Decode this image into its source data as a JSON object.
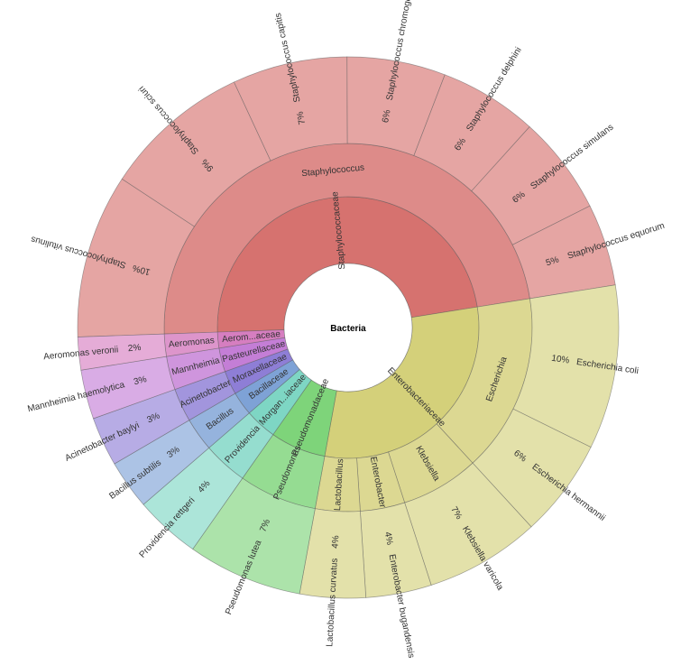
{
  "chart_data": {
    "type": "sunburst",
    "root": "Bacteria",
    "families": [
      {
        "name": "Staphylococcaceae",
        "color": "#d6726f",
        "genera": [
          {
            "name": "Staphylococcus",
            "species": [
              {
                "name": "Staphylococcus vitulinus",
                "pct": 10
              },
              {
                "name": "Staphylococcus sciuri",
                "pct": 9
              },
              {
                "name": "Staphylococcus capitis",
                "pct": 7
              },
              {
                "name": "Staphylococcus chromogenes",
                "pct": 6
              },
              {
                "name": "Staphylococcus delphini",
                "pct": 6
              },
              {
                "name": "Staphylococcus simulans",
                "pct": 6
              },
              {
                "name": "Staphylococcus equorum",
                "pct": 5
              }
            ]
          }
        ]
      },
      {
        "name": "Enterobacteriaceae",
        "color": "#d4d07a",
        "genera": [
          {
            "name": "Escherichia",
            "species": [
              {
                "name": "Escherichia coli",
                "pct": 10
              },
              {
                "name": "Escherichia hermannii",
                "pct": 6
              }
            ]
          },
          {
            "name": "Klebsiella",
            "species": [
              {
                "name": "Klebsiella varicola",
                "pct": 7
              }
            ]
          },
          {
            "name": "Enterobacter",
            "species": [
              {
                "name": "Enterobacter bugandensis",
                "pct": 4
              }
            ]
          },
          {
            "name": "Lactobacillus",
            "species": [
              {
                "name": "Lactobacillus curvatus",
                "pct": 4
              }
            ]
          }
        ]
      },
      {
        "name": "Pseudomonadaceae",
        "color": "#7ed47a",
        "genera": [
          {
            "name": "Pseudomonas",
            "species": [
              {
                "name": "Pseudomonas lutea",
                "pct": 7
              }
            ]
          }
        ]
      },
      {
        "name": "Morgan...iaceae",
        "color": "#7ed6c4",
        "genera": [
          {
            "name": "Providencia",
            "species": [
              {
                "name": "Providencia rettgeri",
                "pct": 4
              }
            ]
          }
        ]
      },
      {
        "name": "Bacillaceae",
        "color": "#7ea2d6",
        "genera": [
          {
            "name": "Bacillus",
            "species": [
              {
                "name": "Bacillus subtilis",
                "pct": 3
              }
            ]
          }
        ]
      },
      {
        "name": "Moraxellaceae",
        "color": "#8e7ed6",
        "genera": [
          {
            "name": "Acinetobacter",
            "species": [
              {
                "name": "Acinetobacter baylyi",
                "pct": 3
              }
            ]
          }
        ]
      },
      {
        "name": "Pasteurellaceae",
        "color": "#c47ed6",
        "genera": [
          {
            "name": "Mannheimia",
            "species": [
              {
                "name": "Mannheimia haemolytica",
                "pct": 3
              }
            ]
          }
        ]
      },
      {
        "name": "Aerom...aceae",
        "color": "#d67ec0",
        "genera": [
          {
            "name": "Aeromonas",
            "species": [
              {
                "name": "Aeromonas veronii",
                "pct": 2
              }
            ]
          }
        ]
      }
    ]
  }
}
